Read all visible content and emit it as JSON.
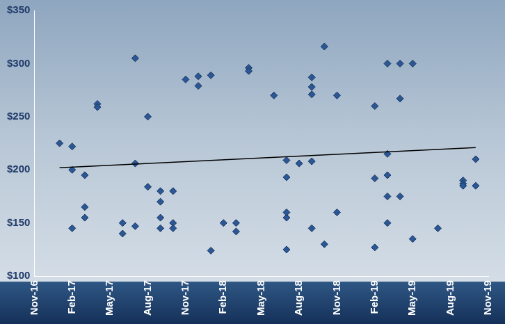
{
  "chart_data": {
    "type": "scatter",
    "xlim": [
      "2016-11",
      "2019-11"
    ],
    "xticks": [
      {
        "value": "2016-11",
        "label": "Nov-16"
      },
      {
        "value": "2017-02",
        "label": "Feb-17"
      },
      {
        "value": "2017-05",
        "label": "May-17"
      },
      {
        "value": "2017-08",
        "label": "Aug-17"
      },
      {
        "value": "2017-11",
        "label": "Nov-17"
      },
      {
        "value": "2018-02",
        "label": "Feb-18"
      },
      {
        "value": "2018-05",
        "label": "May-18"
      },
      {
        "value": "2018-08",
        "label": "Aug-18"
      },
      {
        "value": "2018-11",
        "label": "Nov-18"
      },
      {
        "value": "2019-02",
        "label": "Feb-19"
      },
      {
        "value": "2019-05",
        "label": "May-19"
      },
      {
        "value": "2019-08",
        "label": "Aug-19"
      },
      {
        "value": "2019-11",
        "label": "Nov-19"
      }
    ],
    "ylim": [
      100,
      350
    ],
    "yticks": [
      {
        "value": 100,
        "label": "$100"
      },
      {
        "value": 150,
        "label": "$150"
      },
      {
        "value": 200,
        "label": "$200"
      },
      {
        "value": 250,
        "label": "$250"
      },
      {
        "value": 300,
        "label": "$300"
      },
      {
        "value": 350,
        "label": "$350"
      }
    ],
    "grid": false,
    "series": [
      {
        "type": "scatter",
        "marker": "diamond",
        "color": "#2b5797",
        "x": [
          "2017-01",
          "2017-02",
          "2017-02",
          "2017-02",
          "2017-03",
          "2017-03",
          "2017-03",
          "2017-04",
          "2017-04",
          "2017-06",
          "2017-06",
          "2017-07",
          "2017-07",
          "2017-07",
          "2017-08",
          "2017-08",
          "2017-09",
          "2017-09",
          "2017-09",
          "2017-09",
          "2017-10",
          "2017-10",
          "2017-10",
          "2017-11",
          "2017-12",
          "2017-12",
          "2018-01",
          "2018-01",
          "2018-02",
          "2018-03",
          "2018-03",
          "2018-04",
          "2018-04",
          "2018-06",
          "2018-07",
          "2018-07",
          "2018-07",
          "2018-07",
          "2018-07",
          "2018-08",
          "2018-09",
          "2018-09",
          "2018-09",
          "2018-09",
          "2018-09",
          "2018-10",
          "2018-10",
          "2018-11",
          "2018-11",
          "2019-02",
          "2019-02",
          "2019-02",
          "2019-03",
          "2019-03",
          "2019-03",
          "2019-03",
          "2019-03",
          "2019-04",
          "2019-04",
          "2019-04",
          "2019-05",
          "2019-05",
          "2019-07",
          "2019-09",
          "2019-09",
          "2019-09",
          "2019-10",
          "2019-10"
        ],
        "values": [
          225,
          222,
          145,
          200,
          155,
          195,
          165,
          262,
          259,
          150,
          140,
          305,
          206,
          147,
          184,
          250,
          180,
          155,
          170,
          145,
          150,
          180,
          145,
          285,
          288,
          279,
          289,
          124,
          150,
          142,
          150,
          296,
          293,
          270,
          209,
          155,
          125,
          160,
          193,
          206,
          145,
          208,
          271,
          287,
          278,
          316,
          130,
          160,
          270,
          260,
          127,
          192,
          300,
          150,
          175,
          215,
          195,
          267,
          300,
          175,
          135,
          300,
          145,
          190,
          187,
          185,
          185,
          210
        ]
      },
      {
        "type": "line",
        "line_style": "solid",
        "color": "#000000",
        "x": [
          "2017-01",
          "2019-10"
        ],
        "values": [
          202,
          221
        ]
      }
    ]
  }
}
